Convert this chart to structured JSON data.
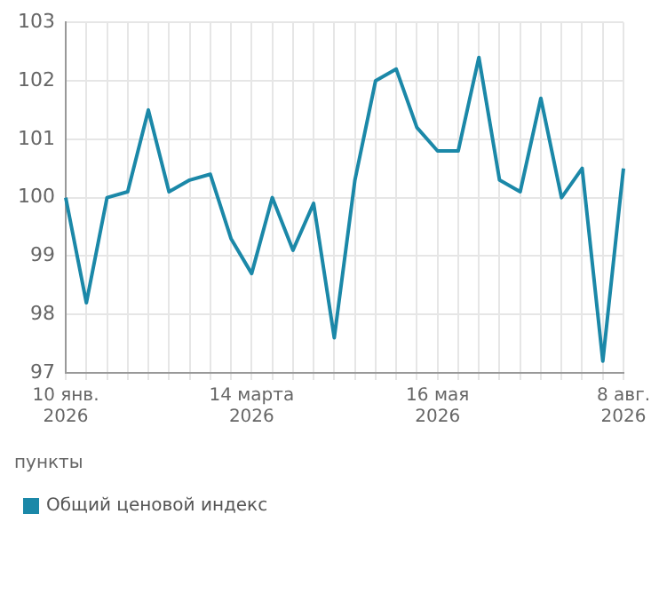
{
  "chart_data": {
    "type": "line",
    "categories": [
      "10 янв. 2026",
      null,
      null,
      null,
      null,
      null,
      null,
      null,
      null,
      "14 марта 2026",
      null,
      null,
      null,
      null,
      null,
      null,
      null,
      null,
      "16 мая 2026",
      null,
      null,
      null,
      null,
      null,
      null,
      null,
      null,
      "8 авг. 2026"
    ],
    "series": [
      {
        "name": "Общий ценовой индекс",
        "color": "#1b88a8",
        "values": [
          100.0,
          98.2,
          100.0,
          100.1,
          101.5,
          100.1,
          100.3,
          100.4,
          99.3,
          98.7,
          100.0,
          99.1,
          99.9,
          97.6,
          100.3,
          102.0,
          102.2,
          101.2,
          100.8,
          100.8,
          102.4,
          100.3,
          100.1,
          101.7,
          100.0,
          100.5,
          97.2,
          100.5
        ]
      }
    ],
    "ylim": [
      97,
      103
    ],
    "yticks": [
      97,
      98,
      99,
      100,
      101,
      102,
      103
    ],
    "grid": true,
    "legend": "bottom",
    "marker": "none",
    "line_style": "solid",
    "annotations": [
      "пункты"
    ]
  }
}
